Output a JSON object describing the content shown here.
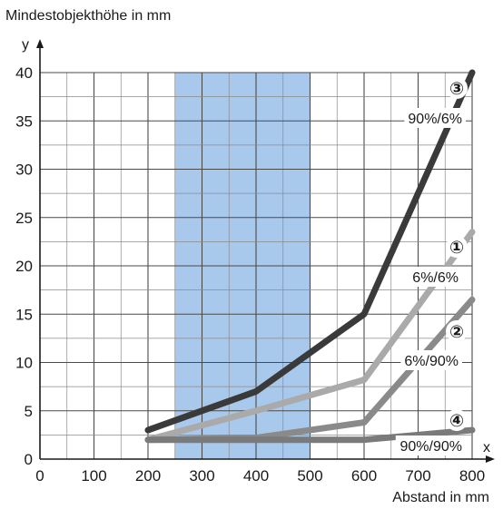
{
  "chart_data": {
    "type": "line",
    "ylabel": "Mindestobjekthöhe in mm",
    "xlabel": "Abstand in mm",
    "x_axis_letter": "x",
    "y_axis_letter": "y",
    "xlim": [
      0,
      800
    ],
    "ylim": [
      0,
      40
    ],
    "xticks": [
      0,
      100,
      200,
      300,
      400,
      500,
      600,
      700,
      800
    ],
    "yticks": [
      0,
      5,
      10,
      15,
      20,
      25,
      30,
      35,
      40
    ],
    "grid": true,
    "highlight_band": {
      "x": [
        250,
        500
      ],
      "color": "#a9c9ec"
    },
    "series": [
      {
        "name": "90%/6%",
        "marker": "③",
        "color": "#3a3a3a",
        "points": [
          [
            200,
            3
          ],
          [
            400,
            7
          ],
          [
            600,
            15
          ],
          [
            800,
            40
          ]
        ]
      },
      {
        "name": "6%/6%",
        "marker": "①",
        "color": "#aaaaaa",
        "points": [
          [
            200,
            2
          ],
          [
            400,
            5
          ],
          [
            600,
            8.2
          ],
          [
            800,
            23.5
          ]
        ]
      },
      {
        "name": "6%/90%",
        "marker": "②",
        "color": "#8a8a8a",
        "points": [
          [
            200,
            2
          ],
          [
            400,
            2.2
          ],
          [
            600,
            3.8
          ],
          [
            800,
            16.5
          ]
        ]
      },
      {
        "name": "90%/90%",
        "marker": "④",
        "color": "#7a7a7a",
        "points": [
          [
            200,
            2
          ],
          [
            400,
            2
          ],
          [
            600,
            2
          ],
          [
            800,
            3
          ]
        ]
      }
    ]
  }
}
